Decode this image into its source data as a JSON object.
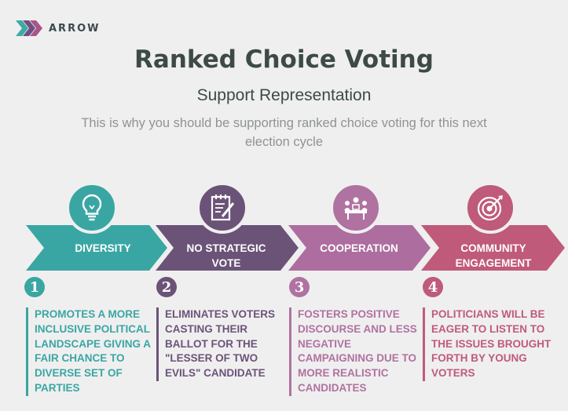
{
  "brand": {
    "name": "ARROW",
    "colors": [
      "#3fa9a5",
      "#6e4f82",
      "#a8568a"
    ]
  },
  "header": {
    "title": "Ranked Choice Voting",
    "subtitle": "Support Representation",
    "description": "This is why you should be supporting ranked choice voting for this next election cycle"
  },
  "steps": [
    {
      "number": "1",
      "label": "DIVERSITY",
      "icon": "lightbulb-icon",
      "color": "#3aa6a3",
      "text": "PROMOTES A MORE INCLUSIVE POLITICAL LANDSCAPE GIVING A FAIR CHANCE TO DIVERSE SET OF PARTIES"
    },
    {
      "number": "2",
      "label": "NO STRATEGIC VOTE",
      "icon": "checklist-icon",
      "color": "#6b5378",
      "text": "ELIMINATES VOTERS CASTING THEIR BALLOT FOR THE \"LESSER OF TWO EVILS\" CANDIDATE"
    },
    {
      "number": "3",
      "label": "COOPERATION",
      "icon": "meeting-icon",
      "color": "#b072a0",
      "text": "FOSTERS POSITIVE DISCOURSE AND LESS NEGATIVE CAMPAIGNING DUE TO MORE REALISTIC CANDIDATES"
    },
    {
      "number": "4",
      "label": "COMMUNITY ENGAGEMENT",
      "icon": "target-icon",
      "color": "#c05a7a",
      "text": "POLITICIANS WILL BE EAGER TO LISTEN TO THE ISSUES BROUGHT FORTH BY YOUNG VOTERS"
    }
  ]
}
